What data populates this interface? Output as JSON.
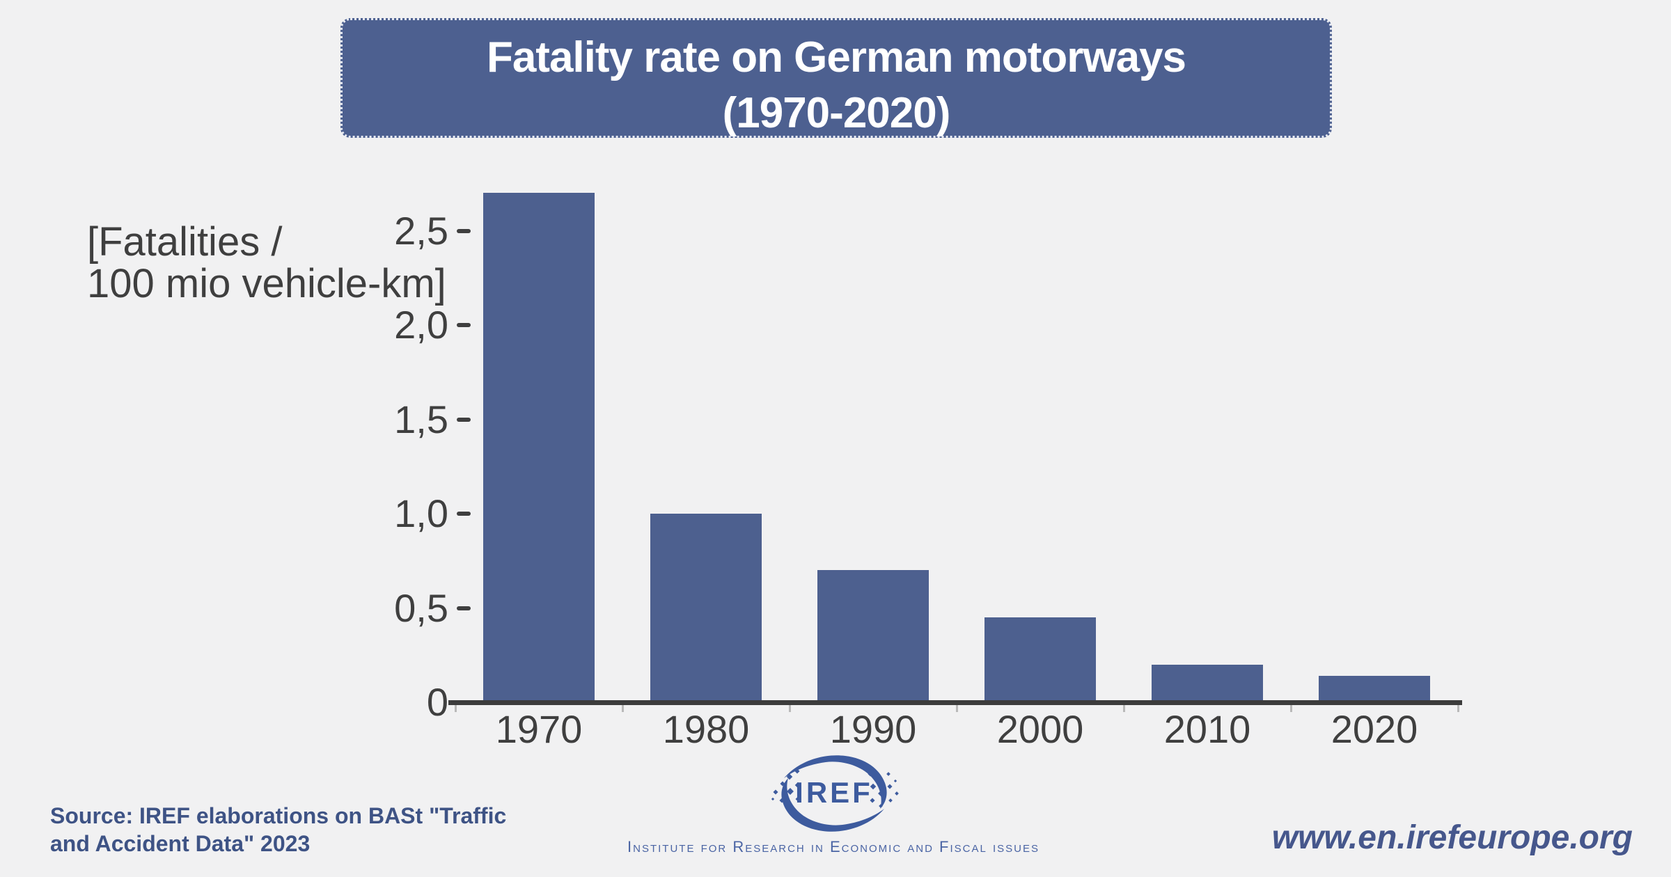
{
  "background_color": "#f1f1f2",
  "title": {
    "line1": "Fatality rate on German motorways",
    "line2": "(1970-2020)",
    "banner_color": "#4d6090",
    "text_color": "#ffffff"
  },
  "axis": {
    "unit_label_line1": "[Fatalities /",
    "unit_label_line2": "100 mio vehicle-km]",
    "text_color": "#3f3f3f"
  },
  "chart_data": {
    "type": "bar",
    "title": "Fatality rate on German motorways (1970-2020)",
    "categories": [
      "1970",
      "1980",
      "1990",
      "2000",
      "2010",
      "2020"
    ],
    "values": [
      2.7,
      1.0,
      0.7,
      0.45,
      0.2,
      0.14
    ],
    "bar_color": "#4d608f",
    "xlabel": "",
    "ylabel": "Fatalities / 100 mio vehicle-km",
    "ylim": [
      0,
      2.75
    ],
    "yticks": [
      {
        "value": 0,
        "label": "0"
      },
      {
        "value": 0.5,
        "label": "0,5"
      },
      {
        "value": 1,
        "label": "1,0"
      },
      {
        "value": 1.5,
        "label": "1,5"
      },
      {
        "value": 2,
        "label": "2,0"
      },
      {
        "value": 2.5,
        "label": "2,5"
      }
    ],
    "grid": false,
    "legend": false
  },
  "footer": {
    "source_line1": "Source: IREF elaborations on BASt \"Traffic",
    "source_line2": "and Accident Data\" 2023",
    "source_color": "#3e5385",
    "logo_text": "IREF",
    "logo_caption": "Institute for Research in Economic and Fiscal issues",
    "logo_color": "#3d5b9e",
    "website": "www.en.irefeurope.org",
    "website_color": "#46578c"
  }
}
